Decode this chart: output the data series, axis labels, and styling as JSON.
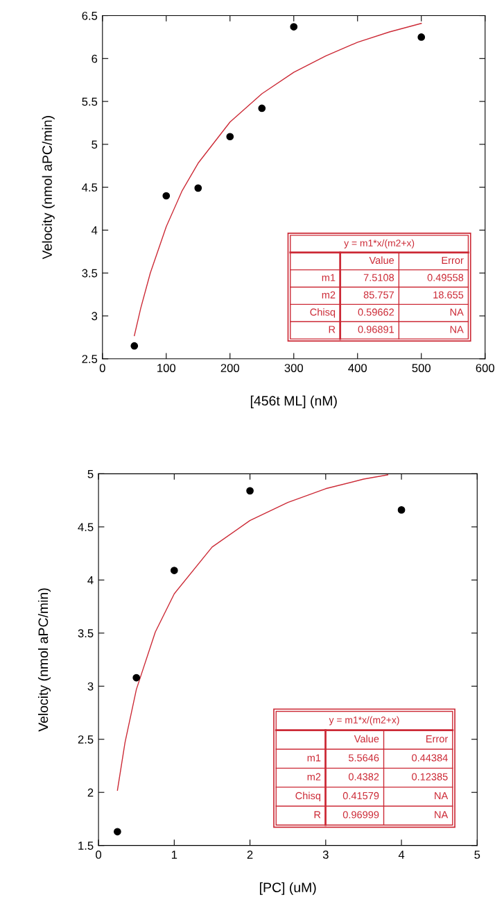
{
  "chart_data": [
    {
      "type": "scatter",
      "xlabel": "[456t ML] (nM)",
      "ylabel": "Velocity (nmol aPC/min)",
      "xlim": [
        0,
        600
      ],
      "ylim": [
        2.5,
        6.5
      ],
      "xticks": [
        0,
        100,
        200,
        300,
        400,
        500,
        600
      ],
      "yticks": [
        2.5,
        3,
        3.5,
        4,
        4.5,
        5,
        5.5,
        6,
        6.5
      ],
      "series": [
        {
          "color": "#000000",
          "marker": "circle",
          "x": [
            50,
            100,
            150,
            200,
            250,
            300,
            500
          ],
          "values": [
            2.65,
            4.4,
            4.49,
            5.09,
            5.42,
            6.37,
            6.25
          ]
        },
        {
          "type": "line",
          "color": "#cc2a36",
          "marker": "none",
          "x": [
            50,
            60,
            75,
            100,
            125,
            150,
            200,
            250,
            300,
            350,
            400,
            450,
            500
          ],
          "values": [
            2.77,
            3.09,
            3.5,
            4.04,
            4.46,
            4.78,
            5.26,
            5.59,
            5.84,
            6.03,
            6.19,
            6.31,
            6.41
          ]
        }
      ],
      "annotations": [
        "y = m1*x/(m2+x)",
        "Value",
        "Error",
        "m1",
        "7.5108",
        "0.49558",
        "m2",
        "85.757",
        "18.655",
        "Chisq",
        "0.59662",
        "NA",
        "R",
        "0.96891",
        "NA"
      ]
    },
    {
      "type": "scatter",
      "xlabel": "[PC] (uM)",
      "ylabel": "Velocity (nmol aPC/min)",
      "xlim": [
        0,
        5
      ],
      "ylim": [
        1.5,
        5
      ],
      "xticks": [
        0,
        1,
        2,
        3,
        4,
        5
      ],
      "yticks": [
        1.5,
        2,
        2.5,
        3,
        3.5,
        4,
        4.5,
        5
      ],
      "series": [
        {
          "color": "#000000",
          "marker": "circle",
          "x": [
            0.25,
            0.5,
            1,
            2,
            4
          ],
          "values": [
            1.63,
            3.08,
            4.09,
            4.84,
            4.66
          ]
        },
        {
          "type": "line",
          "color": "#cc2a36",
          "marker": "none",
          "x": [
            0.25,
            0.35,
            0.5,
            0.75,
            1,
            1.5,
            2,
            2.5,
            3,
            3.5,
            3.82
          ],
          "values": [
            2.02,
            2.47,
            2.97,
            3.51,
            3.87,
            4.31,
            4.56,
            4.73,
            4.86,
            4.95,
            4.99
          ]
        }
      ],
      "annotations": [
        "y = m1*x/(m2+x)",
        "Value",
        "Error",
        "m1",
        "5.5646",
        "0.44384",
        "m2",
        "0.4382",
        "0.12385",
        "Chisq",
        "0.41579",
        "NA",
        "R",
        "0.96999",
        "NA"
      ]
    }
  ]
}
